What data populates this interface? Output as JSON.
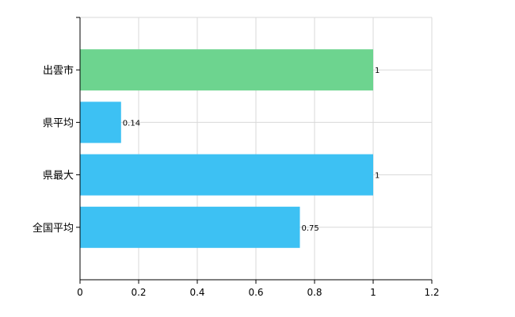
{
  "chart_data": {
    "type": "bar",
    "orientation": "horizontal",
    "categories": [
      "出雲市",
      "県平均",
      "県最大",
      "全国平均"
    ],
    "values": [
      1,
      0.14,
      1,
      0.75
    ],
    "value_labels": [
      "1",
      "0.14",
      "1",
      "0.75"
    ],
    "bar_colors": [
      "#6dd48f",
      "#3dc1f3",
      "#3dc1f3",
      "#3dc1f3"
    ],
    "xlim": [
      0,
      1.2
    ],
    "xticks": [
      "0",
      "0.2",
      "0.4",
      "0.6",
      "0.8",
      "1",
      "1.2"
    ],
    "grid": true,
    "title": "",
    "xlabel": "",
    "ylabel": ""
  }
}
